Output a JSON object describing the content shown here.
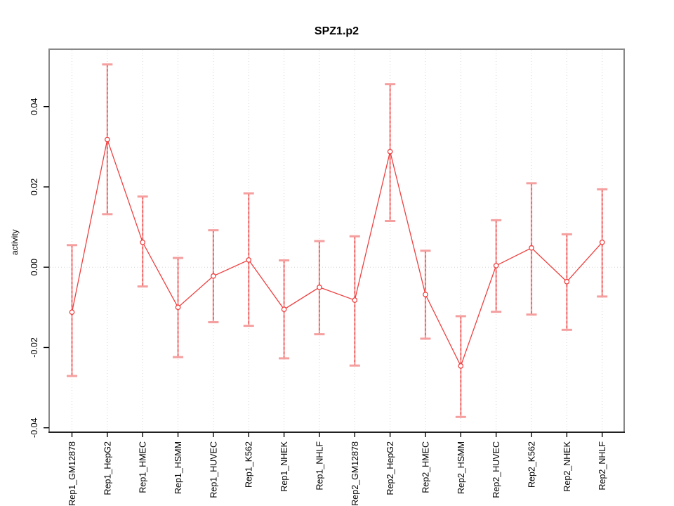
{
  "title": "SPZ1.p2",
  "chart_data": {
    "type": "line",
    "subtype": "means-with-error-bars",
    "title": "SPZ1.p2",
    "xlabel": "",
    "ylabel": "activity",
    "categories": [
      "Rep1_GM12878",
      "Rep1_HepG2",
      "Rep1_HMEC",
      "Rep1_HSMM",
      "Rep1_HUVEC",
      "Rep1_K562",
      "Rep1_NHEK",
      "Rep1_NHLF",
      "Rep2_GM12878",
      "Rep2_HepG2",
      "Rep2_HMEC",
      "Rep2_HSMM",
      "Rep2_HUVEC",
      "Rep2_K562",
      "Rep2_NHEK",
      "Rep2_NHLF"
    ],
    "series": [
      {
        "name": "activity",
        "means": [
          -0.0112,
          0.0318,
          0.0062,
          -0.01,
          -0.0022,
          0.0018,
          -0.0105,
          -0.005,
          -0.0082,
          0.0288,
          -0.0068,
          -0.0246,
          0.0004,
          0.0048,
          -0.0036,
          0.0062
        ],
        "ci_upper": [
          0.0055,
          0.0505,
          0.0176,
          0.0023,
          0.0092,
          0.0184,
          0.0017,
          0.0065,
          0.0077,
          0.0456,
          0.0041,
          -0.0122,
          0.0117,
          0.0209,
          0.0082,
          0.0194
        ],
        "ci_lower": [
          -0.0271,
          0.0132,
          -0.0048,
          -0.0224,
          -0.0137,
          -0.0146,
          -0.0227,
          -0.0167,
          -0.0245,
          0.0115,
          -0.0178,
          -0.0373,
          -0.0111,
          -0.0118,
          -0.0156,
          -0.0073
        ]
      }
    ],
    "yticks": [
      -0.04,
      -0.02,
      0.0,
      0.02,
      0.04
    ],
    "ytick_labels": [
      "-0.04",
      "-0.02",
      "0.00",
      "0.02",
      "0.04"
    ],
    "ylim": [
      -0.0411,
      0.0543
    ],
    "grid": {
      "vertical_gridlines": true,
      "zero_line_dotted": true,
      "legend": "none"
    },
    "colors": {
      "line": "#ee4040",
      "cap": "#f59f9f",
      "point_fill": "#ffffff",
      "gridline": "#d4d4d4",
      "frame": "#888888",
      "axis": "#000000",
      "text": "#000000"
    }
  }
}
